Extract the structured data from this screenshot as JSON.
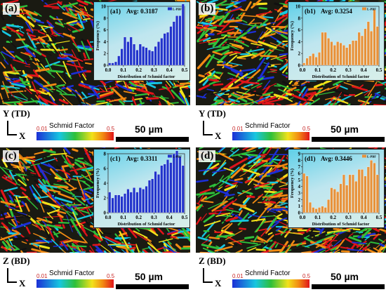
{
  "panels": [
    {
      "label": "(a)",
      "axis": "Y (TD)"
    },
    {
      "label": "(b)",
      "axis": "Y (TD)"
    },
    {
      "label": "(c)",
      "axis": "Z (BD)"
    },
    {
      "label": "(d)",
      "axis": "Z (BD)"
    }
  ],
  "x_axis_label": "X",
  "schmid_title": "Schmid Factor",
  "schmid_min": "0.01",
  "schmid_max": "0.5",
  "scale_bar": "50 µm",
  "colors": {
    "blue_bars": "#2233cc",
    "orange_bars": "#e8923a"
  },
  "chart_data": [
    {
      "type": "bar",
      "label": "(a1)",
      "avg": "Avg: 0.3187",
      "legend": "L-PBF",
      "xlabel": "Distribution of Schmid factor",
      "ylabel": "Frequency (%)",
      "xlim": [
        0,
        0.5
      ],
      "ylim": [
        0,
        10
      ],
      "xticks": [
        "0.0",
        "0.1",
        "0.2",
        "0.3",
        "0.4",
        "0.5"
      ],
      "yticks": [
        "0",
        "2",
        "4",
        "6",
        "8",
        "10"
      ],
      "values": [
        0.4,
        0.4,
        0.6,
        1.6,
        2.8,
        4.8,
        4.0,
        4.8,
        3.6,
        2.6,
        3.6,
        3.2,
        3.0,
        2.6,
        2.4,
        3.2,
        4.0,
        4.6,
        5.4,
        5.6,
        6.6,
        7.4,
        8.4,
        8.4,
        10.4
      ]
    },
    {
      "type": "bar",
      "label": "(b1)",
      "avg": "Avg: 0.3254",
      "legend": "L-PBF",
      "xlabel": "Distribution of Schmid factor",
      "ylabel": "Frequency (%)",
      "xlim": [
        0,
        0.5
      ],
      "ylim": [
        0,
        10
      ],
      "xticks": [
        "0.0",
        "0.1",
        "0.2",
        "0.3",
        "0.4",
        "0.5"
      ],
      "yticks": [
        "0",
        "2",
        "4",
        "6",
        "8",
        "10"
      ],
      "values": [
        0.4,
        1.2,
        1.6,
        2.0,
        1.4,
        2.2,
        5.6,
        5.6,
        4.6,
        4.0,
        3.4,
        4.0,
        3.8,
        3.4,
        3.0,
        3.6,
        4.2,
        4.2,
        5.6,
        5.0,
        6.2,
        7.4,
        5.8,
        9.4,
        6.6
      ]
    },
    {
      "type": "bar",
      "label": "(c1)",
      "avg": "Avg: 0.3311",
      "legend": "L-PBF",
      "xlabel": "Distribution of Schmid factor",
      "ylabel": "Frequency (%)",
      "xlim": [
        0,
        0.5
      ],
      "ylim": [
        0,
        8
      ],
      "xticks": [
        "0.0",
        "0.1",
        "0.2",
        "0.3",
        "0.4",
        "0.5"
      ],
      "yticks": [
        "0",
        "2",
        "4",
        "6",
        "8"
      ],
      "values": [
        2.8,
        2.0,
        2.4,
        2.4,
        2.2,
        2.6,
        3.2,
        2.8,
        3.4,
        2.8,
        3.4,
        3.2,
        3.6,
        4.4,
        4.6,
        5.6,
        5.2,
        6.4,
        6.6,
        7.2,
        6.8,
        8.0,
        8.4,
        7.6,
        6.4
      ]
    },
    {
      "type": "bar",
      "label": "(d1)",
      "avg": "Avg: 0.3446",
      "legend": "L-PBF",
      "xlabel": "Distribution of Schmid factor",
      "ylabel": "Frequency (%)",
      "xlim": [
        0,
        0.5
      ],
      "ylim": [
        0,
        9
      ],
      "xticks": [
        "0.0",
        "0.1",
        "0.2",
        "0.3",
        "0.4",
        "0.5"
      ],
      "yticks": [
        "0",
        "1",
        "2",
        "3",
        "4",
        "5",
        "6",
        "7",
        "8",
        "9"
      ],
      "values": [
        6.0,
        5.6,
        1.6,
        0.8,
        0.6,
        0.8,
        1.0,
        0.8,
        2.0,
        3.8,
        3.6,
        3.2,
        4.4,
        5.8,
        4.2,
        5.8,
        5.8,
        4.8,
        6.6,
        6.6,
        5.6,
        7.0,
        8.0,
        7.6,
        5.8
      ]
    }
  ]
}
